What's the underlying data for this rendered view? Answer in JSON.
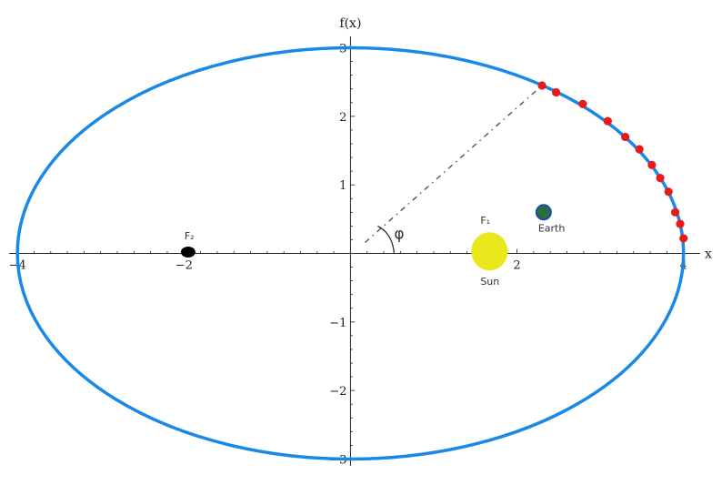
{
  "chart_data": {
    "type": "line",
    "xlabel": "x",
    "ylabel": "f(x)",
    "xlim": [
      -4.1,
      4.2
    ],
    "ylim": [
      -3.1,
      3.1
    ],
    "x_ticks": [
      -4,
      -2,
      2,
      4
    ],
    "y_ticks": [
      -3,
      -2,
      -1,
      1,
      2,
      3
    ],
    "grid": false,
    "series": [
      {
        "kind": "ellipse",
        "center": [
          0,
          0
        ],
        "semi_major": 4,
        "semi_minor": 3,
        "color": "#1a88e6"
      }
    ],
    "points": {
      "color": "#e81b1b",
      "x": [
        2.3,
        2.47,
        2.79,
        3.09,
        3.3,
        3.47,
        3.62,
        3.72,
        3.82,
        3.9,
        3.96,
        4.0
      ],
      "y": [
        2.45,
        2.35,
        2.18,
        1.93,
        1.7,
        1.52,
        1.29,
        1.1,
        0.9,
        0.6,
        0.43,
        0.22
      ]
    },
    "annotations": {
      "angle_label": "φ",
      "focus1_label": "F₁",
      "focus2_label": "F₂",
      "sun_label": "Sun",
      "earth_label": "Earth",
      "sun": {
        "x": 1.67,
        "y": 0.03,
        "color": "#e8e81a"
      },
      "earth": {
        "x": 2.32,
        "y": 0.6,
        "color": "#2a6e3a"
      },
      "focus2": {
        "x": -1.95,
        "y": 0.02,
        "color": "#000000"
      },
      "ray_end": {
        "x": 2.3,
        "y": 2.45
      }
    }
  }
}
